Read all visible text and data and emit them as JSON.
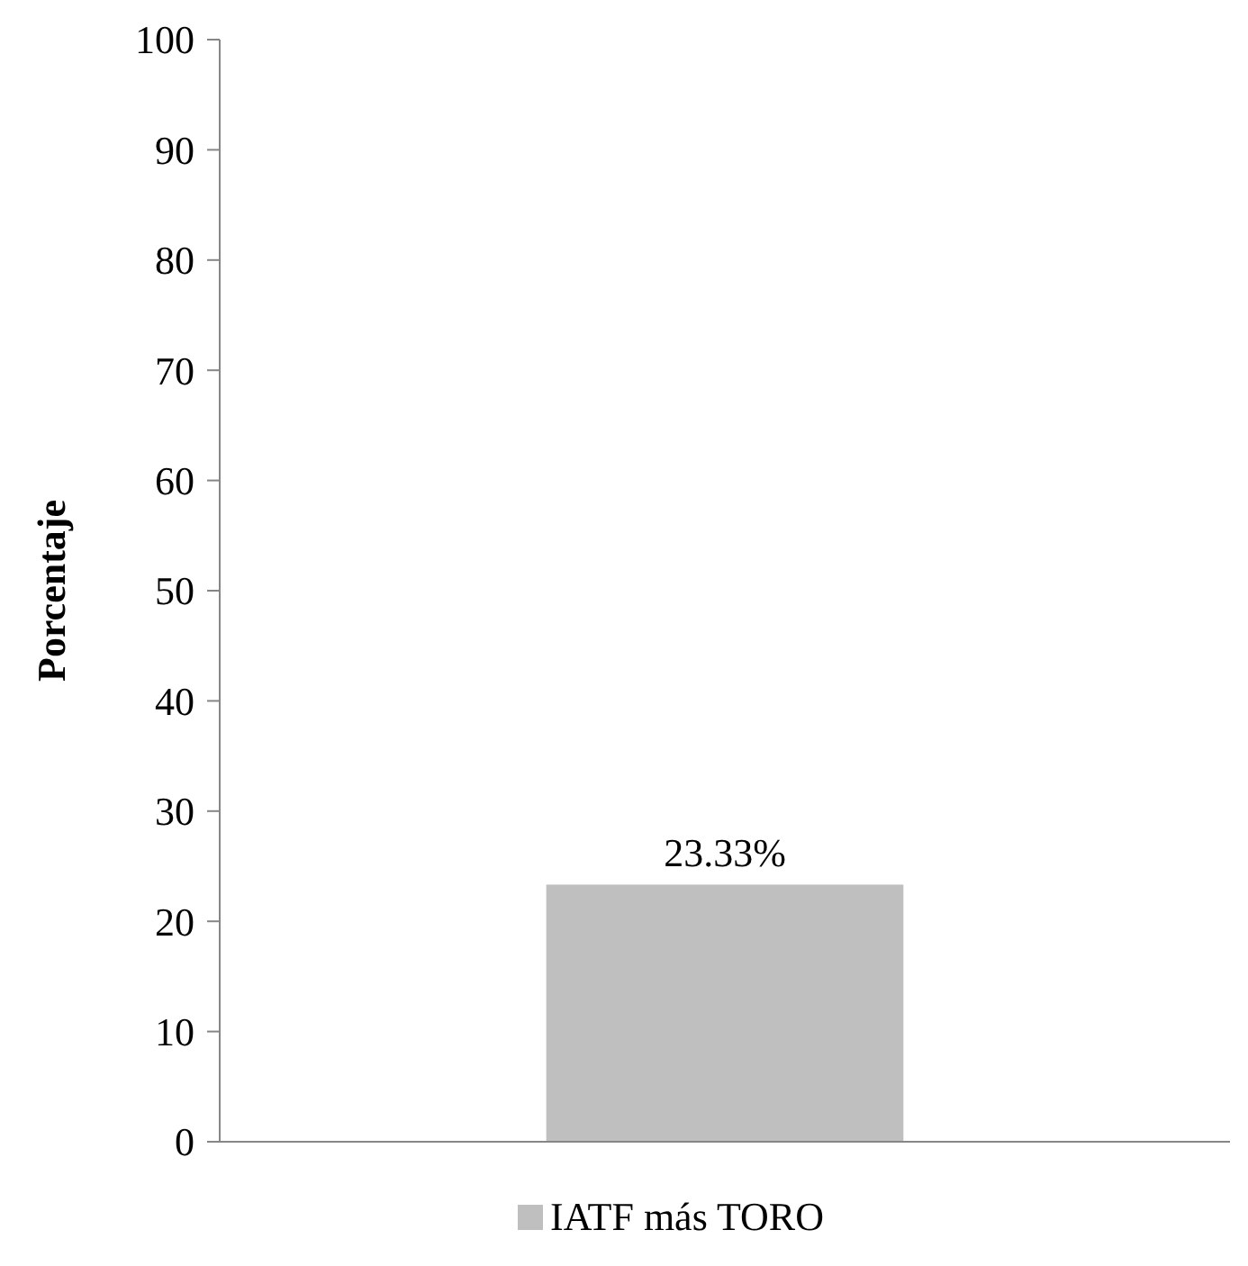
{
  "chart_data": {
    "type": "bar",
    "ylabel": "Porcentaje",
    "categories": [
      null
    ],
    "series": [
      {
        "name": "IATF más TORO",
        "color": "#bfbfbf",
        "values": [
          23.33
        ],
        "value_labels": [
          "23.33%"
        ]
      }
    ],
    "ylim": [
      0,
      100
    ],
    "yticks": [
      0,
      10,
      20,
      30,
      40,
      50,
      60,
      70,
      80,
      90,
      100
    ],
    "grid": false,
    "legend": "bottom"
  }
}
